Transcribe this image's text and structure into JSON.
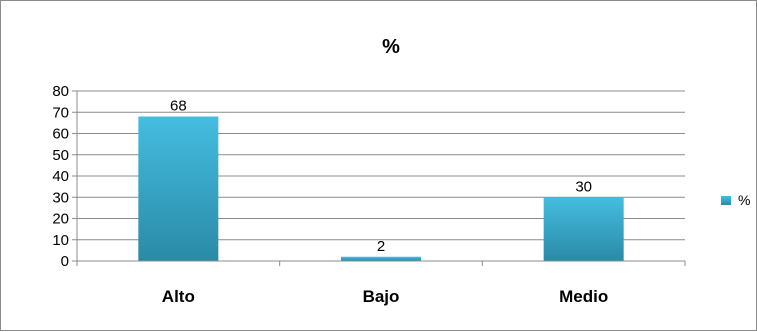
{
  "chart_data": {
    "type": "bar",
    "title": "%",
    "categories": [
      "Alto",
      "Bajo",
      "Medio"
    ],
    "series": [
      {
        "name": "%",
        "values": [
          68,
          2,
          30
        ]
      }
    ],
    "y_ticks": [
      "0",
      "10",
      "20",
      "30",
      "40",
      "50",
      "60",
      "70",
      "80"
    ],
    "ylim": [
      0,
      80
    ],
    "xlabel": "",
    "ylabel": "",
    "grid": true,
    "legend": "right",
    "data_labels": true
  },
  "colors": {
    "bar_top": "#45bde0",
    "bar_bottom": "#2a8aa6",
    "grid": "#8c8c8c",
    "frame": "#8c8c8c"
  }
}
